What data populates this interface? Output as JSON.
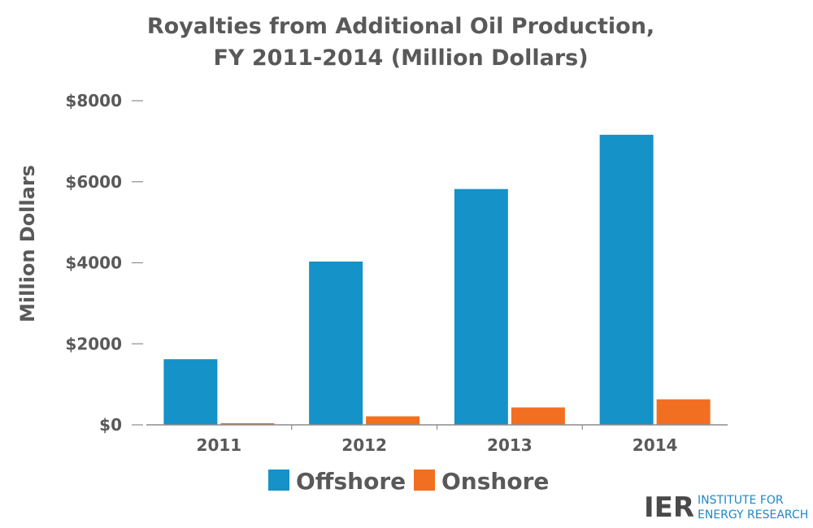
{
  "chart_data": {
    "type": "bar",
    "title_lines": [
      "Royalties from Additional Oil Production,",
      "FY 2011-2014 (Million Dollars)"
    ],
    "ylabel": "Million Dollars",
    "xlabel": "",
    "categories": [
      "2011",
      "2012",
      "2013",
      "2014"
    ],
    "series": [
      {
        "name": "Offshore",
        "values": [
          1620,
          4030,
          5820,
          7160
        ]
      },
      {
        "name": "Onshore",
        "values": [
          40,
          210,
          430,
          630
        ]
      }
    ],
    "ylim": [
      0,
      8000
    ],
    "yticks": [
      0,
      2000,
      4000,
      6000,
      8000
    ],
    "ytick_labels": [
      "$0",
      "$2000",
      "$4000",
      "$6000",
      "$8000"
    ],
    "grid": false,
    "legend_position": "bottom"
  },
  "colors": {
    "Offshore": "#1592c8",
    "Onshore": "#f26f21"
  },
  "logo": {
    "abbr": "IER",
    "line1": "INSTITUTE FOR",
    "line2": "ENERGY RESEARCH"
  }
}
